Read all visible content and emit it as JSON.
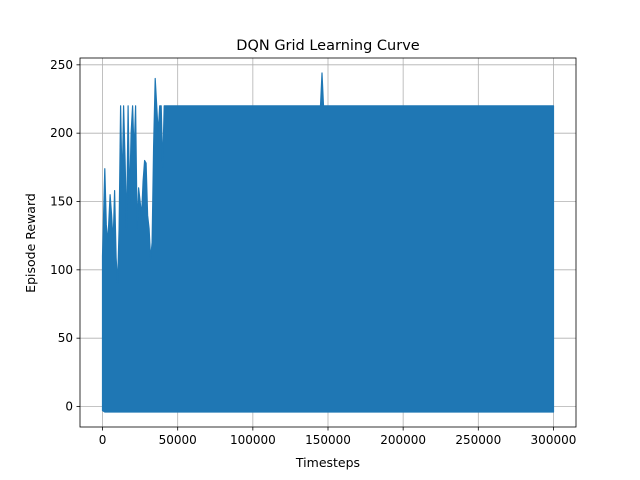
{
  "chart_data": {
    "type": "line",
    "title": "DQN Grid Learning Curve",
    "xlabel": "Timesteps",
    "ylabel": "Episode Reward",
    "xlim": [
      -15000,
      315000
    ],
    "ylim": [
      -15,
      255
    ],
    "xticks": [
      0,
      50000,
      100000,
      150000,
      200000,
      250000,
      300000
    ],
    "xtick_labels": [
      "0",
      "50000",
      "100000",
      "150000",
      "200000",
      "250000",
      "300000"
    ],
    "yticks": [
      0,
      50,
      100,
      150,
      200,
      250
    ],
    "ytick_labels": [
      "0",
      "50",
      "100",
      "150",
      "200",
      "250"
    ],
    "grid": true,
    "line_color": "#1f77b4",
    "series": [
      {
        "x": [
          0,
          1500,
          2500,
          3500,
          5000,
          6000,
          7000,
          8000,
          9000,
          10000,
          11000,
          12000,
          13000,
          14000,
          15000,
          16000,
          17000,
          18000,
          19000,
          20000,
          21000,
          22000,
          23000,
          24000,
          25000,
          26000,
          27000,
          28000,
          29000,
          30000,
          31000,
          32000,
          33000,
          34000,
          35000,
          36000,
          37000,
          38000,
          39000,
          40000,
          41000,
          42000,
          43000,
          44000,
          45000,
          46000,
          47000,
          48000,
          50000,
          55000,
          60000,
          65000,
          70000,
          75000,
          80000,
          85000,
          90000,
          95000,
          100000,
          105000,
          110000,
          115000,
          120000,
          125000,
          130000,
          135000,
          140000,
          145000,
          146000,
          147000,
          150000,
          155000,
          160000,
          165000,
          170000,
          175000,
          180000,
          185000,
          190000,
          195000,
          200000,
          205000,
          210000,
          215000,
          220000,
          225000,
          230000,
          235000,
          240000,
          245000,
          250000,
          255000,
          260000,
          265000,
          270000,
          275000,
          280000,
          285000,
          290000,
          295000,
          300000
        ],
        "min": [
          -3,
          -4,
          -4,
          -4,
          -4,
          -4,
          -4,
          -4,
          -4,
          -4,
          -4,
          -4,
          -4,
          -4,
          -4,
          -4,
          -4,
          -4,
          -4,
          -4,
          -4,
          -4,
          -4,
          -4,
          -4,
          -4,
          -4,
          -4,
          -4,
          -4,
          -4,
          -4,
          -4,
          -4,
          -4,
          -4,
          -4,
          -4,
          -4,
          -4,
          -4,
          -4,
          -4,
          -4,
          -4,
          -4,
          -4,
          -4,
          -4,
          -4,
          -4,
          -4,
          -4,
          -4,
          -4,
          -4,
          -4,
          -4,
          -4,
          -4,
          -4,
          -4,
          -4,
          -4,
          -4,
          -4,
          -4,
          -4,
          -4,
          -4,
          -4,
          -4,
          -4,
          -4,
          -4,
          -4,
          -4,
          -4,
          -4,
          -4,
          -4,
          -4,
          -4,
          -4,
          -4,
          -4,
          -4,
          -4,
          -4,
          -4,
          -4,
          -4,
          -4,
          -4,
          -4,
          -4,
          -4,
          -4,
          -4,
          -4,
          -4
        ],
        "max": [
          110,
          174,
          133,
          120,
          155,
          140,
          120,
          158,
          109,
          90,
          130,
          220,
          160,
          220,
          180,
          130,
          220,
          150,
          200,
          220,
          185,
          220,
          130,
          160,
          150,
          140,
          165,
          180,
          178,
          140,
          130,
          108,
          120,
          190,
          240,
          220,
          200,
          220,
          220,
          175,
          220,
          220,
          220,
          220,
          220,
          220,
          220,
          220,
          220,
          220,
          220,
          220,
          220,
          220,
          220,
          220,
          220,
          220,
          220,
          220,
          220,
          220,
          220,
          220,
          220,
          220,
          220,
          220,
          244,
          220,
          220,
          220,
          220,
          220,
          220,
          220,
          220,
          220,
          220,
          220,
          220,
          220,
          220,
          220,
          220,
          220,
          220,
          220,
          220,
          220,
          220,
          220,
          220,
          220,
          220,
          220,
          220,
          220,
          220,
          220,
          220
        ]
      }
    ]
  }
}
